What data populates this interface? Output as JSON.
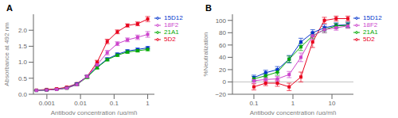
{
  "chart_data": [
    {
      "type": "line",
      "title": "A",
      "x_label": "Antibody concentration (μg/ml)",
      "y_label": "Absorbance at 492 nm",
      "log": "x",
      "legend": "right",
      "xlim": [
        0.00039810717055349735,
        1.5848931924611136
      ],
      "xticks": [
        0.001,
        0.01,
        0.1,
        1
      ],
      "ylim": [
        0,
        2.5
      ],
      "yticks": [
        {
          "value": 0,
          "label": "0.0"
        },
        0.5,
        {
          "value": 1,
          "label": "1.0"
        },
        1.5,
        {
          "value": 2,
          "label": "2.0"
        }
      ],
      "x": [
        0.00049,
        0.00098,
        0.00195,
        0.00391,
        0.00781,
        0.01563,
        0.03125,
        0.0625,
        0.125,
        0.25,
        0.5,
        1.0
      ],
      "series": [
        {
          "name": "5D2",
          "color": "#e8001c",
          "marker": "square",
          "values": [
            0.13,
            0.15,
            0.17,
            0.22,
            0.33,
            0.55,
            1.0,
            1.65,
            1.95,
            2.15,
            2.2,
            2.35
          ],
          "yerr": [
            0.01,
            0.01,
            0.02,
            0.02,
            0.03,
            0.04,
            0.06,
            0.07,
            0.06,
            0.05,
            0.06,
            0.08
          ]
        },
        {
          "name": "15D12",
          "color": "#0033cc",
          "marker": "square",
          "values": [
            0.12,
            0.13,
            0.15,
            0.2,
            0.32,
            0.55,
            0.85,
            1.1,
            1.25,
            1.35,
            1.4,
            1.45
          ],
          "yerr": [
            0.01,
            0.01,
            0.01,
            0.02,
            0.03,
            0.04,
            0.05,
            0.04,
            0.04,
            0.04,
            0.04,
            0.04
          ]
        },
        {
          "name": "21A1",
          "color": "#00aa00",
          "marker": "square",
          "values": [
            0.12,
            0.13,
            0.15,
            0.19,
            0.3,
            0.53,
            0.83,
            1.08,
            1.22,
            1.32,
            1.36,
            1.4
          ],
          "yerr": [
            0.01,
            0.01,
            0.01,
            0.02,
            0.03,
            0.04,
            0.04,
            0.04,
            0.04,
            0.04,
            0.04,
            0.04
          ]
        },
        {
          "name": "18F2",
          "color": "#cc44cc",
          "marker": "square",
          "values": [
            0.12,
            0.13,
            0.15,
            0.19,
            0.3,
            0.55,
            0.92,
            1.3,
            1.58,
            1.7,
            1.78,
            1.87
          ],
          "yerr": [
            0.01,
            0.01,
            0.01,
            0.02,
            0.03,
            0.04,
            0.06,
            0.07,
            0.06,
            0.06,
            0.07,
            0.09
          ]
        }
      ]
    },
    {
      "type": "line",
      "title": "B",
      "x_label": "Antibody concentration (μg/ml)",
      "y_label": "%Neutralization",
      "log": "x",
      "legend": "right",
      "xlim": [
        0.028183829312644536,
        35.481338923357555
      ],
      "xticks": [
        0.1,
        1,
        10
      ],
      "ylim": [
        -20,
        110
      ],
      "yticks": [
        {
          "value": -20,
          "label": "−20"
        },
        0,
        20,
        40,
        60,
        80,
        100
      ],
      "reference_lines": [
        0
      ],
      "x": [
        0.1,
        0.2,
        0.4,
        0.8,
        1.6,
        3.2,
        6.4,
        12.8,
        25.6
      ],
      "series": [
        {
          "name": "5D2",
          "color": "#e8001c",
          "marker": "square",
          "values": [
            -8,
            -2,
            -2,
            -8,
            8,
            65,
            100,
            103,
            103
          ],
          "yerr": [
            5,
            4,
            5,
            6,
            8,
            9,
            5,
            4,
            4
          ]
        },
        {
          "name": "15D12",
          "color": "#0033cc",
          "marker": "square",
          "values": [
            7,
            15,
            20,
            37,
            65,
            80,
            88,
            92,
            93
          ],
          "yerr": [
            4,
            4,
            5,
            6,
            6,
            5,
            5,
            4,
            4
          ]
        },
        {
          "name": "21A1",
          "color": "#00aa00",
          "marker": "square",
          "values": [
            5,
            10,
            16,
            37,
            57,
            75,
            85,
            91,
            92
          ],
          "yerr": [
            4,
            4,
            5,
            5,
            6,
            5,
            5,
            4,
            4
          ]
        },
        {
          "name": "18F2",
          "color": "#cc44cc",
          "marker": "square",
          "values": [
            2,
            4,
            5,
            12,
            40,
            75,
            85,
            88,
            91
          ],
          "yerr": [
            4,
            4,
            4,
            5,
            7,
            6,
            5,
            4,
            4
          ]
        }
      ]
    }
  ]
}
